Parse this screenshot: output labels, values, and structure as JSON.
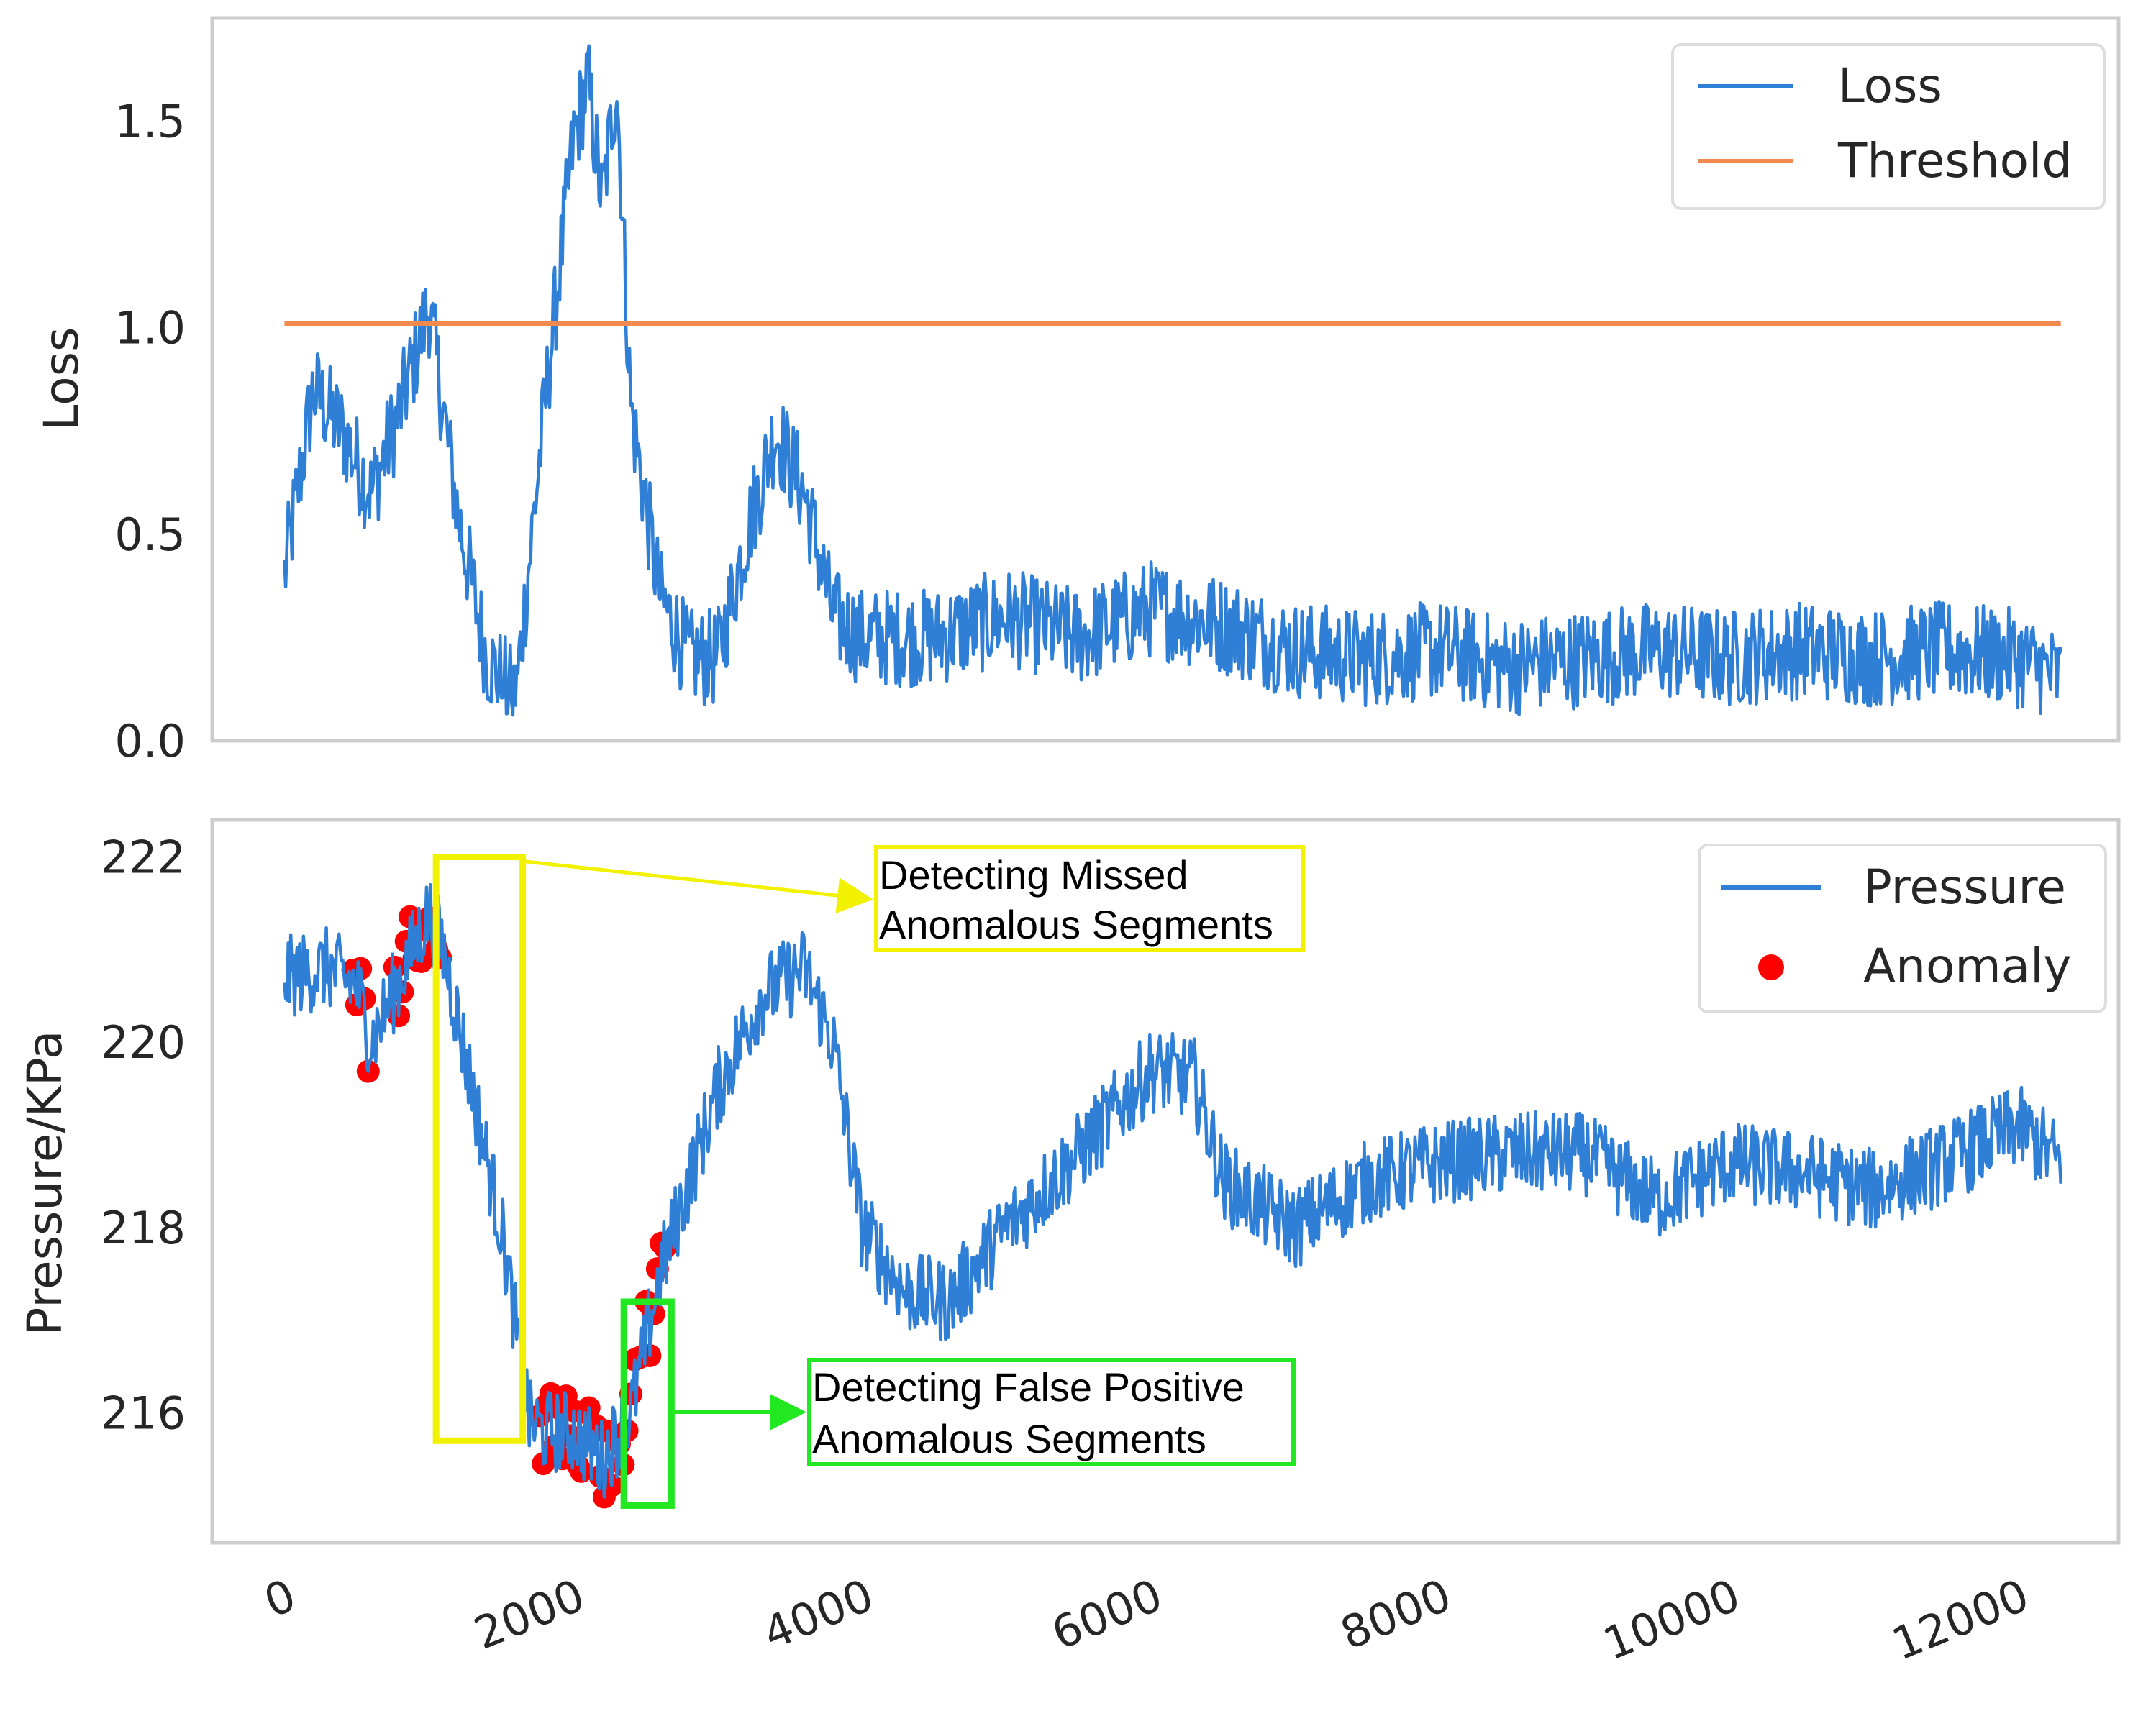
{
  "chart_data": [
    {
      "type": "line",
      "panel": "top",
      "ylabel": "Loss",
      "xlabel": "",
      "xlim": [
        -500,
        12700
      ],
      "ylim": [
        0.0,
        1.75
      ],
      "yticks": [
        "0.0",
        "0.5",
        "1.0",
        "1.5"
      ],
      "ytick_values": [
        0.0,
        0.5,
        1.0,
        1.5
      ],
      "grid": false,
      "legend": {
        "placement": "top-right",
        "entries": [
          "Loss",
          "Threshold"
        ]
      },
      "series": [
        {
          "name": "Loss",
          "color": "#2f7fd6",
          "x": [
            0,
            200,
            400,
            600,
            800,
            1000,
            1200,
            1400,
            1600,
            1800,
            2000,
            2100,
            2200,
            2300,
            2400,
            2600,
            2800,
            3000,
            3200,
            3400,
            3600,
            3800,
            4000,
            4500,
            5000,
            5500,
            6000,
            6500,
            7000,
            7500,
            8000,
            8500,
            9000,
            9500,
            10000,
            10500,
            11000,
            11500,
            12000,
            12300
          ],
          "y": [
            0.4,
            0.85,
            0.75,
            0.6,
            0.8,
            1.05,
            0.55,
            0.2,
            0.1,
            0.8,
            1.45,
            1.6,
            1.3,
            1.6,
            0.8,
            0.35,
            0.2,
            0.2,
            0.5,
            0.75,
            0.6,
            0.3,
            0.25,
            0.25,
            0.3,
            0.25,
            0.32,
            0.28,
            0.22,
            0.2,
            0.22,
            0.18,
            0.2,
            0.22,
            0.2,
            0.22,
            0.2,
            0.22,
            0.2,
            0.15
          ],
          "noise_amplitude": 0.12
        },
        {
          "name": "Threshold",
          "color": "#f28a50",
          "x": [
            0,
            12300
          ],
          "y": [
            1.01,
            1.01
          ]
        }
      ]
    },
    {
      "type": "line",
      "panel": "bottom",
      "ylabel": "Pressure/KPa",
      "xlabel": "",
      "xlim": [
        -500,
        12700
      ],
      "ylim": [
        214.6,
        222.4
      ],
      "yticks": [
        "216",
        "218",
        "220",
        "222"
      ],
      "ytick_values": [
        216,
        218,
        220,
        222
      ],
      "xticks": [
        "0",
        "2000",
        "4000",
        "6000",
        "8000",
        "10000",
        "12000"
      ],
      "xtick_values": [
        0,
        2000,
        4000,
        6000,
        8000,
        10000,
        12000
      ],
      "grid": false,
      "legend": {
        "placement": "top-right",
        "entries": [
          "Pressure",
          "Anomaly"
        ]
      },
      "series": [
        {
          "name": "Pressure",
          "color": "#2f7fd6",
          "x": [
            0,
            300,
            500,
            600,
            800,
            1000,
            1100,
            1300,
            1500,
            1700,
            1800,
            2000,
            2200,
            2400,
            2600,
            2800,
            3000,
            3300,
            3600,
            3800,
            4000,
            4300,
            4600,
            5000,
            5500,
            6000,
            6300,
            6500,
            7000,
            7500,
            8000,
            8500,
            9000,
            9500,
            10000,
            10500,
            11000,
            11500,
            12000,
            12300
          ],
          "y": [
            220.7,
            220.8,
            220.6,
            220.0,
            220.7,
            221.4,
            221.0,
            219.5,
            218.0,
            215.9,
            215.8,
            215.8,
            215.5,
            216.0,
            217.5,
            218.5,
            219.5,
            220.5,
            220.8,
            220.0,
            218.0,
            217.3,
            217.2,
            218.0,
            218.8,
            219.7,
            219.6,
            218.5,
            218.0,
            218.5,
            218.7,
            218.8,
            218.8,
            218.3,
            218.7,
            218.6,
            218.4,
            218.7,
            219.1,
            218.7
          ],
          "noise_amplitude": 0.45
        },
        {
          "name": "Anomaly",
          "color": "#ff0000",
          "ranges": [
            [
              450,
              600
            ],
            [
              750,
              1100
            ],
            [
              1750,
              2650
            ]
          ]
        }
      ],
      "annotations": [
        {
          "text_lines": [
            "Detecting Missed",
            "Anomalous Segments"
          ],
          "box_color": "#f2f200",
          "region_x": [
            1050,
            1650
          ],
          "region_y": [
            215.7,
            222.0
          ]
        },
        {
          "text_lines": [
            "Detecting False Positive",
            "Anomalous Segments"
          ],
          "box_color": "#22e822",
          "region_x": [
            2350,
            2680
          ],
          "region_y": [
            215.0,
            217.2
          ]
        }
      ]
    }
  ]
}
